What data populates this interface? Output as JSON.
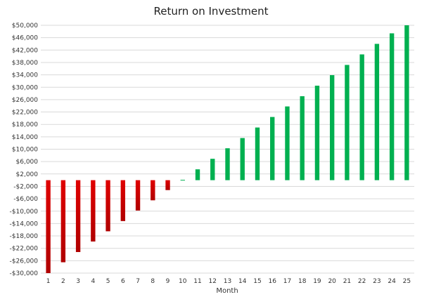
{
  "chart_data": {
    "type": "bar",
    "title": "Return on Investment",
    "xlabel": "Month",
    "ylabel": "",
    "categories": [
      "1",
      "2",
      "3",
      "4",
      "5",
      "6",
      "7",
      "8",
      "9",
      "10",
      "11",
      "12",
      "13",
      "14",
      "15",
      "16",
      "17",
      "18",
      "19",
      "20",
      "21",
      "22",
      "23",
      "24",
      "25"
    ],
    "values": [
      -30000,
      -26500,
      -23200,
      -19800,
      -16500,
      -13200,
      -9800,
      -6500,
      -3200,
      100,
      3500,
      6900,
      10300,
      13600,
      17000,
      20400,
      23800,
      27100,
      30500,
      33900,
      37200,
      40600,
      44000,
      47400,
      50000
    ],
    "ylim": [
      -30000,
      50000
    ],
    "y_ticks": [
      -30000,
      -26000,
      -22000,
      -18000,
      -14000,
      -10000,
      -6000,
      -2000,
      2000,
      6000,
      10000,
      14000,
      18000,
      22000,
      26000,
      30000,
      34000,
      38000,
      42000,
      46000,
      50000
    ],
    "y_tick_labels": [
      "-$30,000",
      "-$26,000",
      "-$22,000",
      "-$18,000",
      "-$14,000",
      "-$10,000",
      "-$6,000",
      "-$2,000",
      "$2,000",
      "$6,000",
      "$10,000",
      "$14,000",
      "$18,000",
      "$22,000",
      "$26,000",
      "$30,000",
      "$34,000",
      "$38,000",
      "$42,000",
      "$46,000",
      "$50,000"
    ],
    "grid": true,
    "legend": "none",
    "colors": {
      "positive": "#00b050",
      "negative": "#e00000",
      "negative_dark": "#b00000",
      "grid": "#d9d9d9"
    }
  }
}
